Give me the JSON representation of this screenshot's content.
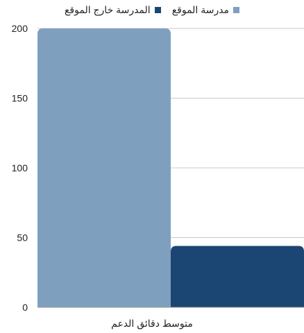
{
  "chart_data": {
    "type": "bar",
    "categories": [
      "متوسط دقائق الدعم"
    ],
    "series": [
      {
        "name": "مدرسة الموقع",
        "values": [
          200
        ],
        "color": "#7f9fbf"
      },
      {
        "name": "المدرسة خارج الموقع",
        "values": [
          44
        ],
        "color": "#1b4572"
      }
    ],
    "title": "",
    "xlabel": "",
    "ylabel": "",
    "ylim": [
      0,
      200
    ],
    "yticks": [
      0,
      50,
      100,
      150,
      200
    ],
    "grid": true,
    "legend_position": "top"
  }
}
